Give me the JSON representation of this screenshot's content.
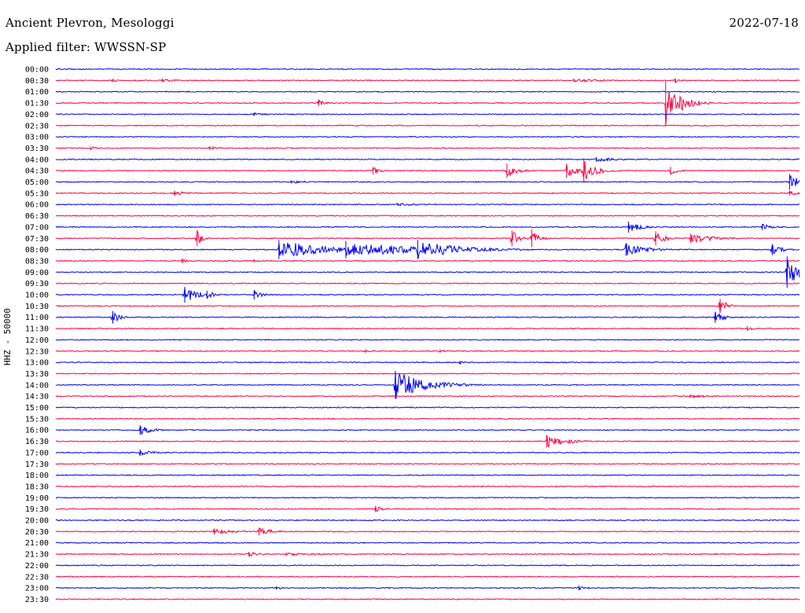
{
  "header": {
    "station": "Ancient Plevron, Mesologgi",
    "filter": "Applied filter: WWSSN-SP",
    "date": "2022-07-18"
  },
  "ylabel": "HHZ - 50000",
  "colors": {
    "odd": "#0000ff",
    "even": "#ff0044"
  },
  "chart_data": {
    "type": "helicorder",
    "ylabel": "HHZ - 50000",
    "x_range_minutes": [
      0,
      30
    ],
    "row_labels": [
      "00:00",
      "00:30",
      "01:00",
      "01:30",
      "02:00",
      "02:30",
      "03:00",
      "03:30",
      "04:00",
      "04:30",
      "05:00",
      "05:30",
      "06:00",
      "06:30",
      "07:00",
      "07:30",
      "08:00",
      "08:30",
      "09:00",
      "09:30",
      "10:00",
      "10:30",
      "11:00",
      "11:30",
      "12:00",
      "12:30",
      "13:00",
      "13:30",
      "14:00",
      "14:30",
      "15:00",
      "15:30",
      "16:00",
      "16:30",
      "17:00",
      "17:30",
      "18:00",
      "18:30",
      "19:00",
      "19:30",
      "20:00",
      "20:30",
      "21:00",
      "21:30",
      "22:00",
      "22:30",
      "23:00",
      "23:30"
    ],
    "events": [
      {
        "row": 1,
        "t": 2.3,
        "amp": 2,
        "dur": 0.2
      },
      {
        "row": 1,
        "t": 4.3,
        "amp": 2,
        "dur": 0.6
      },
      {
        "row": 1,
        "t": 20.9,
        "amp": 2,
        "dur": 1.5
      },
      {
        "row": 1,
        "t": 25.0,
        "amp": 3,
        "dur": 0.2
      },
      {
        "row": 3,
        "t": 10.6,
        "amp": 4,
        "dur": 0.3
      },
      {
        "row": 3,
        "t": 24.6,
        "amp": 28,
        "dur": 0.6
      },
      {
        "row": 4,
        "t": 8.0,
        "amp": 2,
        "dur": 0.6
      },
      {
        "row": 7,
        "t": 1.4,
        "amp": 2,
        "dur": 0.4
      },
      {
        "row": 7,
        "t": 6.2,
        "amp": 2,
        "dur": 0.5
      },
      {
        "row": 8,
        "t": 21.8,
        "amp": 3,
        "dur": 0.8
      },
      {
        "row": 9,
        "t": 12.8,
        "amp": 5,
        "dur": 0.3
      },
      {
        "row": 9,
        "t": 18.2,
        "amp": 9,
        "dur": 0.4
      },
      {
        "row": 9,
        "t": 20.6,
        "amp": 9,
        "dur": 0.5
      },
      {
        "row": 9,
        "t": 21.3,
        "amp": 14,
        "dur": 0.5
      },
      {
        "row": 9,
        "t": 24.8,
        "amp": 5,
        "dur": 0.3
      },
      {
        "row": 10,
        "t": 9.5,
        "amp": 2,
        "dur": 0.8
      },
      {
        "row": 10,
        "t": 29.6,
        "amp": 10,
        "dur": 0.4
      },
      {
        "row": 11,
        "t": 4.8,
        "amp": 3,
        "dur": 0.5
      },
      {
        "row": 11,
        "t": 29.6,
        "amp": 3,
        "dur": 0.4
      },
      {
        "row": 12,
        "t": 13.8,
        "amp": 2,
        "dur": 0.8
      },
      {
        "row": 14,
        "t": 23.1,
        "amp": 7,
        "dur": 0.5
      },
      {
        "row": 14,
        "t": 28.5,
        "amp": 4,
        "dur": 0.5
      },
      {
        "row": 15,
        "t": 5.7,
        "amp": 10,
        "dur": 0.2
      },
      {
        "row": 15,
        "t": 18.4,
        "amp": 10,
        "dur": 0.3
      },
      {
        "row": 15,
        "t": 19.2,
        "amp": 11,
        "dur": 0.3
      },
      {
        "row": 15,
        "t": 24.2,
        "amp": 9,
        "dur": 0.4
      },
      {
        "row": 15,
        "t": 25.6,
        "amp": 6,
        "dur": 1.0
      },
      {
        "row": 16,
        "t": 9.0,
        "amp": 12,
        "dur": 1.8
      },
      {
        "row": 16,
        "t": 11.7,
        "amp": 11,
        "dur": 2.5
      },
      {
        "row": 16,
        "t": 14.6,
        "amp": 12,
        "dur": 1.6
      },
      {
        "row": 16,
        "t": 23.0,
        "amp": 8,
        "dur": 0.8
      },
      {
        "row": 16,
        "t": 28.9,
        "amp": 7,
        "dur": 0.4
      },
      {
        "row": 17,
        "t": 5.1,
        "amp": 3,
        "dur": 0.3
      },
      {
        "row": 17,
        "t": 8.0,
        "amp": 2,
        "dur": 0.2
      },
      {
        "row": 18,
        "t": 29.5,
        "amp": 20,
        "dur": 0.5
      },
      {
        "row": 20,
        "t": 5.2,
        "amp": 10,
        "dur": 0.6
      },
      {
        "row": 20,
        "t": 6.1,
        "amp": 5,
        "dur": 0.4
      },
      {
        "row": 20,
        "t": 8.0,
        "amp": 6,
        "dur": 0.3
      },
      {
        "row": 21,
        "t": 26.8,
        "amp": 9,
        "dur": 0.3
      },
      {
        "row": 22,
        "t": 2.3,
        "amp": 8,
        "dur": 0.3
      },
      {
        "row": 22,
        "t": 26.6,
        "amp": 7,
        "dur": 0.4
      },
      {
        "row": 23,
        "t": 27.9,
        "amp": 3,
        "dur": 0.3
      },
      {
        "row": 25,
        "t": 12.5,
        "amp": 2,
        "dur": 0.3
      },
      {
        "row": 25,
        "t": 15.5,
        "amp": 2,
        "dur": 0.3
      },
      {
        "row": 26,
        "t": 16.3,
        "amp": 2,
        "dur": 0.4
      },
      {
        "row": 28,
        "t": 13.7,
        "amp": 18,
        "dur": 1.2
      },
      {
        "row": 29,
        "t": 25.6,
        "amp": 2,
        "dur": 1.0
      },
      {
        "row": 32,
        "t": 3.4,
        "amp": 6,
        "dur": 0.5
      },
      {
        "row": 33,
        "t": 19.8,
        "amp": 8,
        "dur": 0.8
      },
      {
        "row": 34,
        "t": 3.4,
        "amp": 4,
        "dur": 0.5
      },
      {
        "row": 39,
        "t": 12.9,
        "amp": 4,
        "dur": 0.3
      },
      {
        "row": 41,
        "t": 6.4,
        "amp": 4,
        "dur": 0.8
      },
      {
        "row": 41,
        "t": 8.2,
        "amp": 5,
        "dur": 0.6
      },
      {
        "row": 43,
        "t": 7.8,
        "amp": 3,
        "dur": 0.5
      },
      {
        "row": 43,
        "t": 9.3,
        "amp": 2,
        "dur": 1.8
      },
      {
        "row": 46,
        "t": 8.9,
        "amp": 2,
        "dur": 0.4
      },
      {
        "row": 46,
        "t": 21.1,
        "amp": 3,
        "dur": 0.3
      }
    ]
  }
}
